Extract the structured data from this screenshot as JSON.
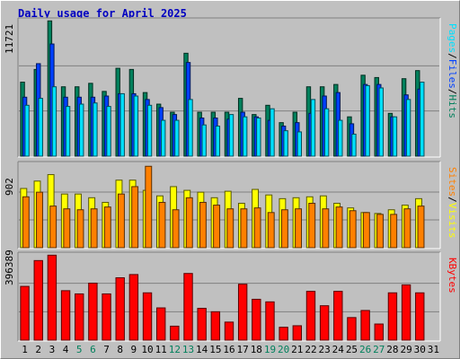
{
  "title": "Daily usage for April 2025",
  "colors": {
    "title": "#0000c0",
    "hits": "#00805c",
    "files": "#0040ff",
    "pages": "#00e0ff",
    "visits": "#ffff00",
    "sites": "#ff8000",
    "kbytes": "#ff0000",
    "weekend_tick": "#00805c",
    "plot_bg": "#c0c0c0"
  },
  "chart_data": {
    "type": "bar",
    "categories": [
      "1",
      "2",
      "3",
      "4",
      "5",
      "6",
      "7",
      "8",
      "9",
      "10",
      "11",
      "12",
      "13",
      "14",
      "15",
      "16",
      "17",
      "18",
      "19",
      "20",
      "21",
      "22",
      "23",
      "24",
      "25",
      "26",
      "27",
      "28",
      "29",
      "30",
      "31"
    ],
    "weekend_days": [
      "5",
      "6",
      "12",
      "13",
      "19",
      "20",
      "26",
      "27"
    ],
    "panels": [
      {
        "id": "top",
        "max_label": "11721",
        "ylim": [
          0,
          11721
        ],
        "right_label": [
          "Pages",
          "/",
          "Files",
          "/",
          "Hits"
        ],
        "right_label_colors": [
          "#00e0ff",
          "#000000",
          "#0040ff",
          "#000000",
          "#00805c"
        ],
        "series": [
          {
            "name": "Hits",
            "values": [
              6400,
              7500,
              11700,
              6000,
              6000,
              6300,
              5600,
              7600,
              7500,
              5500,
              4500,
              3800,
              8900,
              3800,
              3800,
              3800,
              5000,
              3600,
              4400,
              2900,
              3800,
              6000,
              6000,
              6200,
              3400,
              7000,
              6800,
              3700,
              6700,
              7400,
              null
            ]
          },
          {
            "name": "Files",
            "values": [
              5100,
              8000,
              9700,
              5100,
              5100,
              5100,
              5200,
              5400,
              5400,
              4900,
              4200,
              3600,
              8100,
              3300,
              3300,
              3200,
              3800,
              3400,
              3100,
              2600,
              2900,
              3700,
              5200,
              5500,
              2800,
              6200,
              6200,
              3400,
              5300,
              5800,
              null
            ]
          },
          {
            "name": "Pages",
            "values": [
              4400,
              5000,
              6000,
              4300,
              4500,
              4600,
              4300,
              5400,
              5200,
              4400,
              3100,
              3100,
              4900,
              2700,
              2600,
              3600,
              3400,
              3300,
              4100,
              2200,
              2100,
              4900,
              4100,
              3100,
              1900,
              6100,
              5900,
              3400,
              4900,
              6400,
              null
            ]
          }
        ]
      },
      {
        "id": "middle",
        "max_label": "902",
        "ylim": [
          0,
          902
        ],
        "right_label": [
          "Sites",
          "/",
          "Visits"
        ],
        "right_label_colors": [
          "#ff8000",
          "#000000",
          "#ffff00"
        ],
        "series": [
          {
            "name": "Visits",
            "values": [
              640,
              720,
              790,
              580,
              580,
              540,
              490,
              730,
              730,
              620,
              560,
              660,
              620,
              600,
              540,
              610,
              480,
              630,
              570,
              530,
              540,
              550,
              560,
              480,
              430,
              380,
              370,
              410,
              460,
              530,
              null
            ]
          },
          {
            "name": "Sites",
            "values": [
              550,
              600,
              450,
              420,
              410,
              420,
              440,
              580,
              660,
              880,
              490,
              410,
              540,
              490,
              460,
              420,
              420,
              430,
              380,
              410,
              420,
              480,
              420,
              440,
              400,
              380,
              360,
              360,
              420,
              450,
              null
            ]
          }
        ]
      },
      {
        "id": "bottom",
        "max_label": "396389",
        "ylim": [
          0,
          396389
        ],
        "right_label": [
          "KBytes"
        ],
        "right_label_colors": [
          "#ff0000"
        ],
        "series": [
          {
            "name": "KBytes",
            "values": [
              250000,
              370000,
              395000,
              230000,
              215000,
              265000,
              215000,
              290000,
              305000,
              220000,
              150000,
              65000,
              310000,
              148000,
              132000,
              84000,
              260000,
              190000,
              178000,
              60000,
              67000,
              227000,
              160000,
              227000,
              105000,
              138000,
              75000,
              220000,
              257000,
              220000,
              null
            ]
          }
        ]
      }
    ]
  }
}
